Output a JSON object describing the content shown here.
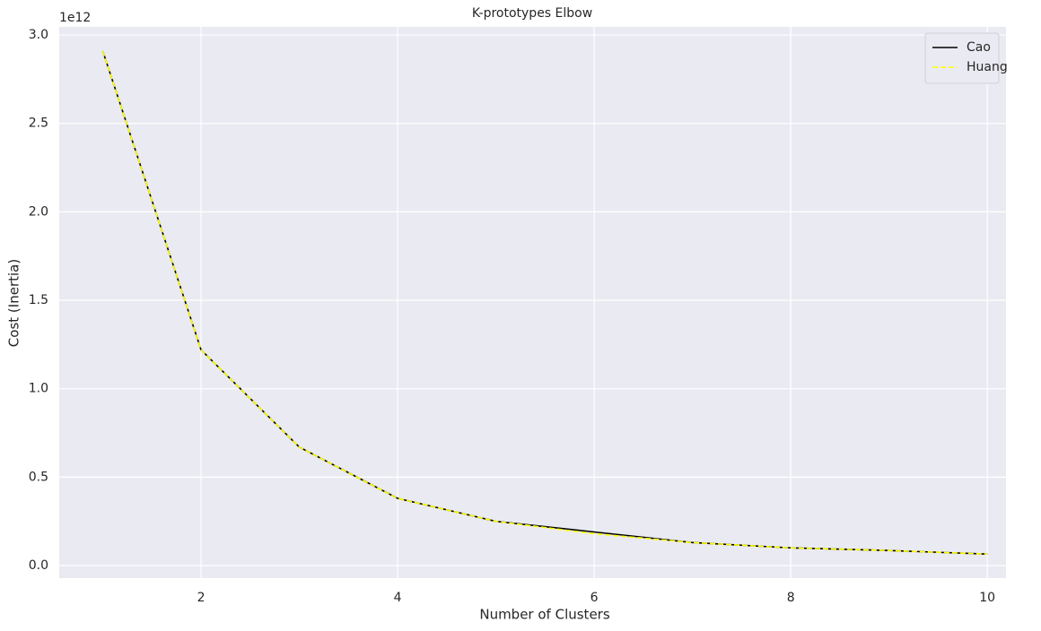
{
  "chart_data": {
    "type": "line",
    "title": "K-prototypes Elbow",
    "xlabel": "Number of Clusters",
    "ylabel": "Cost (Inertia)",
    "y_offset_text": "1e12",
    "x": [
      1,
      2,
      3,
      4,
      5,
      6,
      7,
      8,
      9,
      10
    ],
    "series": [
      {
        "name": "Cao",
        "color": "#000000",
        "dash": "solid",
        "values": [
          2.91,
          1.22,
          0.67,
          0.38,
          0.25,
          0.19,
          0.13,
          0.1,
          0.085,
          0.065
        ]
      },
      {
        "name": "Huang",
        "color": "#ffff00",
        "dash": "dashed",
        "values": [
          2.91,
          1.22,
          0.67,
          0.38,
          0.25,
          0.18,
          0.13,
          0.1,
          0.085,
          0.065
        ]
      }
    ],
    "xlim": [
      0.557,
      10.19
    ],
    "ylim": [
      -0.071,
      3.046
    ],
    "xticks": [
      2,
      4,
      6,
      8,
      10
    ],
    "yticks": [
      {
        "value": 0,
        "label": "0.0"
      },
      0.5,
      {
        "value": 1,
        "label": "1.0"
      },
      1.5,
      {
        "value": 2,
        "label": "2.0"
      },
      2.5,
      {
        "value": 3,
        "label": "3.0"
      }
    ],
    "grid": true,
    "legend": "upper right"
  }
}
